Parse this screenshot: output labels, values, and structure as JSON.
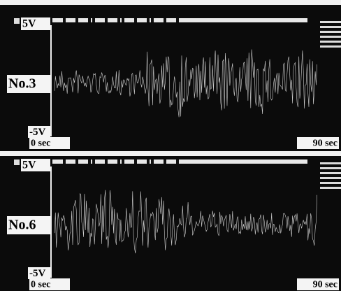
{
  "panels": [
    {
      "scale_max": "5V",
      "scale_min": "-5V",
      "channel": "No.3",
      "time_start": "0 sec",
      "time_end": "90 sec"
    },
    {
      "scale_max": "5V",
      "scale_min": "-5V",
      "channel": "No.6",
      "time_start": "0 sec",
      "time_end": "90 sec"
    }
  ]
}
